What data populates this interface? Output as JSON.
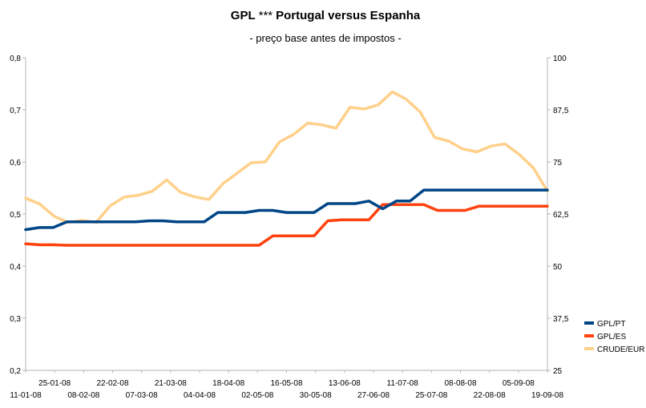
{
  "chart_data": {
    "type": "line",
    "title": "GPL *** Portugal versus Espanha",
    "title_main": "GPL",
    "title_stars": "***",
    "title_rest": "Portugal versus Espanha",
    "subtitle": "- preço base antes de impostos -",
    "grid": false,
    "legend_position": "right",
    "x_labels_top": [
      "25-01-08",
      "22-02-08",
      "21-03-08",
      "18-04-08",
      "16-05-08",
      "13-06-08",
      "11-07-08",
      "08-08-08",
      "05-09-08"
    ],
    "x_labels_bottom": [
      "11-01-08",
      "08-02-08",
      "07-03-08",
      "04-04-08",
      "02-05-08",
      "30-05-08",
      "27-06-08",
      "25-07-08",
      "22-08-08",
      "19-09-08"
    ],
    "y_left": {
      "ticks": [
        "0,2",
        "0,3",
        "0,4",
        "0,5",
        "0,6",
        "0,7",
        "0,8"
      ],
      "range": [
        0.2,
        0.8
      ]
    },
    "y_right": {
      "ticks": [
        "25",
        "37,5",
        "50",
        "62,5",
        "75",
        "87,5",
        "100"
      ],
      "range": [
        25,
        100
      ]
    },
    "series": [
      {
        "name": "GPL/PT",
        "color": "#004586",
        "axis": "left",
        "values": [
          0.47,
          0.474,
          0.474,
          0.485,
          0.485,
          0.485,
          0.485,
          0.485,
          0.485,
          0.487,
          0.487,
          0.485,
          0.485,
          0.485,
          0.503,
          0.503,
          0.503,
          0.507,
          0.507,
          0.503,
          0.503,
          0.503,
          0.52,
          0.52,
          0.52,
          0.525,
          0.51,
          0.525,
          0.525,
          0.546,
          0.546,
          0.546,
          0.546,
          0.546,
          0.546,
          0.546,
          0.546,
          0.546,
          0.546
        ]
      },
      {
        "name": "GPL/ES",
        "color": "#ff420e",
        "axis": "left",
        "values": [
          0.443,
          0.441,
          0.441,
          0.44,
          0.44,
          0.44,
          0.44,
          0.44,
          0.44,
          0.44,
          0.44,
          0.44,
          0.44,
          0.44,
          0.44,
          0.44,
          0.44,
          0.44,
          0.458,
          0.458,
          0.458,
          0.458,
          0.487,
          0.489,
          0.489,
          0.489,
          0.518,
          0.518,
          0.518,
          0.518,
          0.507,
          0.507,
          0.507,
          0.515,
          0.515,
          0.515,
          0.515,
          0.515,
          0.515
        ]
      },
      {
        "name": "CRUDE/EUR",
        "color": "#ffd08a",
        "axis": "right",
        "values": [
          66.3,
          64.9,
          62.0,
          60.5,
          61.0,
          60.5,
          64.5,
          66.6,
          67.0,
          68.0,
          70.7,
          67.7,
          66.6,
          66.0,
          69.8,
          72.3,
          74.8,
          75.0,
          79.8,
          81.6,
          84.3,
          83.9,
          83.1,
          88.1,
          87.7,
          88.7,
          91.8,
          90.0,
          86.9,
          80.9,
          80.0,
          78.1,
          77.4,
          78.8,
          79.3,
          76.8,
          73.6,
          68.0
        ]
      }
    ]
  }
}
